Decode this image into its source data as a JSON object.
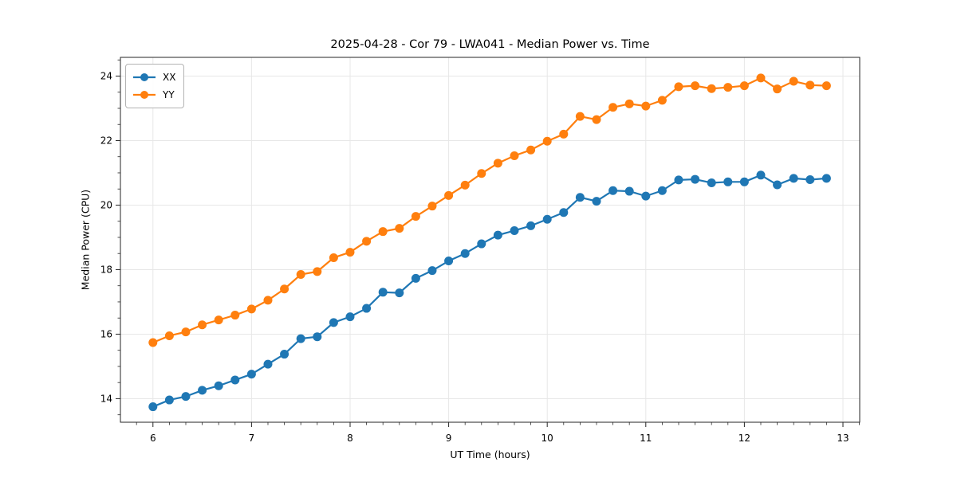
{
  "figure": {
    "background": "#ffffff",
    "text_color": "#000000"
  },
  "chart_data": {
    "type": "line",
    "title": "2025-04-28 - Cor 79 - LWA041 - Median Power vs. Time",
    "xlabel": "UT Time (hours)",
    "ylabel": "Median Power (CPU)",
    "xlim": [
      5.67,
      13.17
    ],
    "ylim": [
      13.27,
      24.58
    ],
    "xticks": [
      6,
      7,
      8,
      9,
      10,
      11,
      12,
      13
    ],
    "yticks": [
      14,
      16,
      18,
      20,
      22,
      24
    ],
    "x_minor_step": 0.16667,
    "y_minor_step": 0.5,
    "grid": true,
    "grid_color": "#e7e7e7",
    "legend_position": "upper left",
    "x": [
      6.0,
      6.1667,
      6.3333,
      6.5,
      6.6667,
      6.8333,
      7.0,
      7.1667,
      7.3333,
      7.5,
      7.6667,
      7.8333,
      8.0,
      8.1667,
      8.3333,
      8.5,
      8.6667,
      8.8333,
      9.0,
      9.1667,
      9.3333,
      9.5,
      9.6667,
      9.8333,
      10.0,
      10.1667,
      10.3333,
      10.5,
      10.6667,
      10.8333,
      11.0,
      11.1667,
      11.3333,
      11.5,
      11.6667,
      11.8333,
      12.0,
      12.1667,
      12.3333,
      12.5,
      12.6667,
      12.8333
    ],
    "series": [
      {
        "name": "XX",
        "color": "#1f77b4",
        "values": [
          13.75,
          13.96,
          14.07,
          14.26,
          14.4,
          14.58,
          14.76,
          15.07,
          15.38,
          15.86,
          15.92,
          16.36,
          16.54,
          16.8,
          17.3,
          17.28,
          17.73,
          17.97,
          18.27,
          18.5,
          18.8,
          19.07,
          19.21,
          19.36,
          19.56,
          19.77,
          20.24,
          20.12,
          20.45,
          20.43,
          20.28,
          20.45,
          20.78,
          20.8,
          20.69,
          20.72,
          20.72,
          20.93,
          20.63,
          20.83,
          20.79,
          20.83
        ]
      },
      {
        "name": "YY",
        "color": "#ff7f0e",
        "values": [
          15.74,
          15.95,
          16.07,
          16.29,
          16.44,
          16.59,
          16.78,
          17.05,
          17.4,
          17.85,
          17.94,
          18.37,
          18.54,
          18.88,
          19.18,
          19.28,
          19.65,
          19.97,
          20.3,
          20.62,
          20.98,
          21.3,
          21.53,
          21.71,
          21.98,
          22.2,
          22.75,
          22.65,
          23.03,
          23.14,
          23.07,
          23.25,
          23.67,
          23.7,
          23.61,
          23.65,
          23.7,
          23.94,
          23.6,
          23.84,
          23.72,
          23.7
        ]
      }
    ]
  }
}
